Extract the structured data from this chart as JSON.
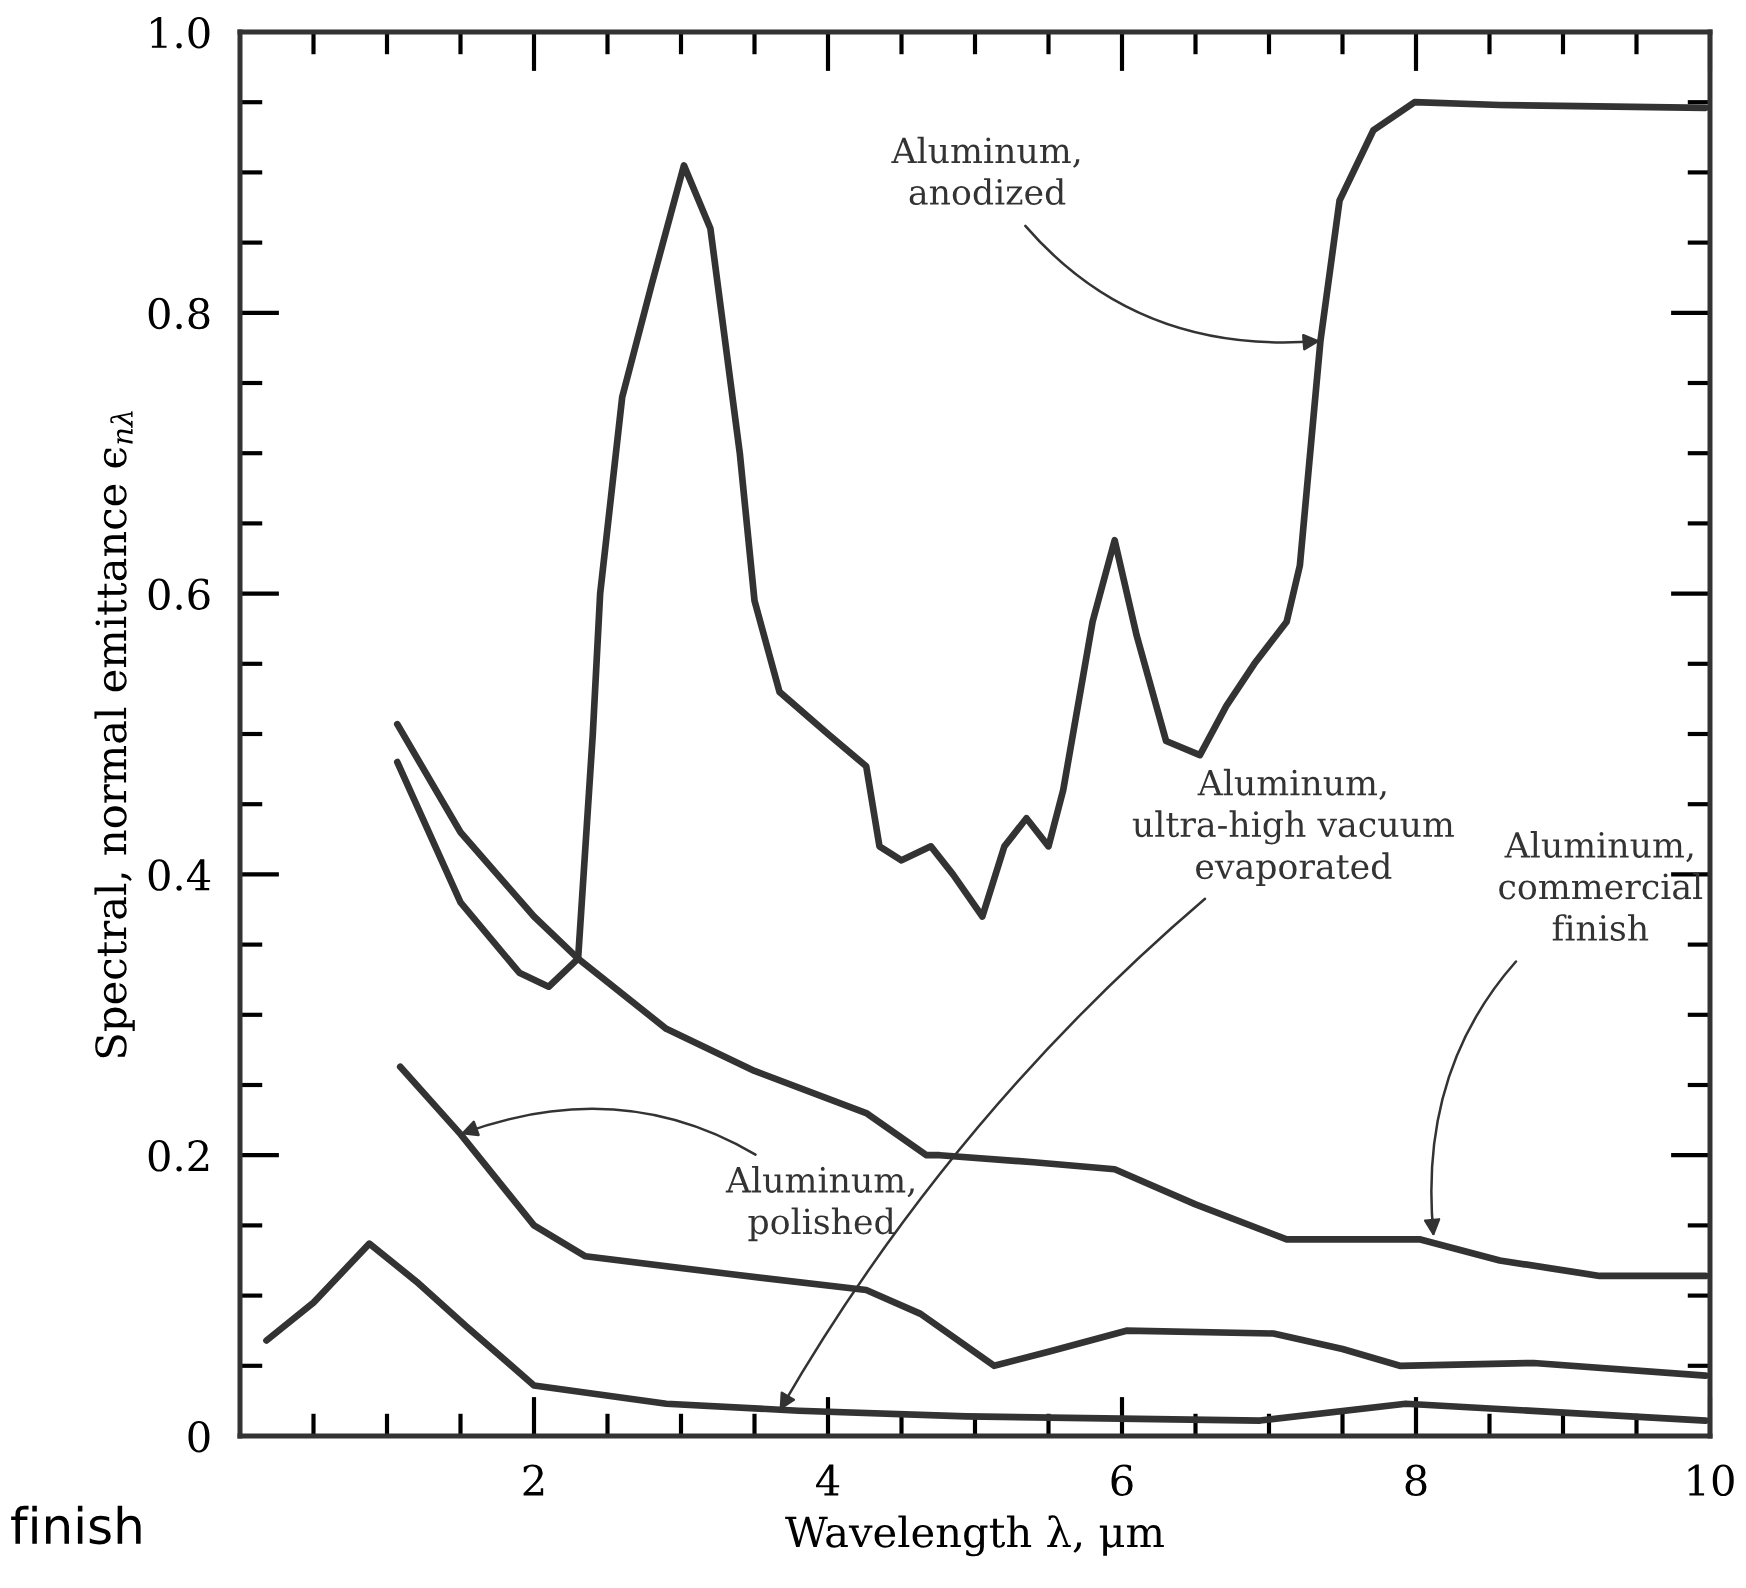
{
  "chart_data": {
    "type": "line",
    "xlabel": "Wavelength λ, μm",
    "ylabel": "Spectral, normal emittance ϵ$_{nλ}$",
    "xlim": [
      0,
      10
    ],
    "ylim": [
      0,
      1
    ],
    "xticks": [
      {
        "value": 0.5,
        "label": null
      },
      {
        "value": 1,
        "label": null
      },
      {
        "value": 1.5,
        "label": null
      },
      2,
      {
        "value": 2.5,
        "label": null
      },
      {
        "value": 3,
        "label": null
      },
      {
        "value": 3.5,
        "label": null
      },
      4,
      {
        "value": 4.5,
        "label": null
      },
      {
        "value": 5,
        "label": null
      },
      {
        "value": 5.5,
        "label": null
      },
      6,
      {
        "value": 6.5,
        "label": null
      },
      {
        "value": 7,
        "label": null
      },
      {
        "value": 7.5,
        "label": null
      },
      8,
      {
        "value": 8.5,
        "label": null
      },
      {
        "value": 9,
        "label": null
      },
      {
        "value": 9.5,
        "label": null
      },
      10
    ],
    "yticks": [
      0,
      {
        "value": 0.05,
        "label": null
      },
      {
        "value": 0.1,
        "label": null
      },
      {
        "value": 0.15,
        "label": null
      },
      0.2,
      {
        "value": 0.25,
        "label": null
      },
      {
        "value": 0.3,
        "label": null
      },
      {
        "value": 0.35,
        "label": null
      },
      0.4,
      {
        "value": 0.45,
        "label": null
      },
      {
        "value": 0.5,
        "label": null
      },
      {
        "value": 0.55,
        "label": null
      },
      0.6,
      {
        "value": 0.65,
        "label": null
      },
      {
        "value": 0.7,
        "label": null
      },
      {
        "value": 0.75,
        "label": null
      },
      0.8,
      {
        "value": 0.85,
        "label": null
      },
      {
        "value": 0.9,
        "label": null
      },
      {
        "value": 0.95,
        "label": null
      },
      {
        "value": 1,
        "label": "1.0"
      }
    ],
    "grid": false,
    "legend": false,
    "marker": "none",
    "line_style": "solid",
    "series": [
      {
        "color": "#333333",
        "x": [
          1.07,
          1.5,
          1.9,
          2.1,
          2.3,
          2.4,
          2.45,
          2.6,
          2.8,
          3.02,
          3.2,
          3.4,
          3.5,
          3.67,
          4.0,
          4.26,
          4.35,
          4.5,
          4.7,
          4.85,
          5.05,
          5.2,
          5.35,
          5.5,
          5.6,
          5.8,
          5.95,
          6.1,
          6.3,
          6.53,
          6.71,
          6.9,
          7.12,
          7.21,
          7.35,
          7.48,
          7.71,
          7.99,
          8.57,
          9.97
        ],
        "values": [
          0.48,
          0.38,
          0.33,
          0.32,
          0.34,
          0.5,
          0.6,
          0.74,
          0.82,
          0.905,
          0.86,
          0.7,
          0.595,
          0.53,
          0.5,
          0.477,
          0.42,
          0.41,
          0.42,
          0.4,
          0.37,
          0.42,
          0.44,
          0.42,
          0.46,
          0.58,
          0.638,
          0.57,
          0.495,
          0.485,
          0.52,
          0.55,
          0.58,
          0.62,
          0.78,
          0.88,
          0.93,
          0.95,
          0.948,
          0.946
        ]
      },
      {
        "color": "#333333",
        "x": [
          1.07,
          1.5,
          2.0,
          2.3,
          2.9,
          3.5,
          4.26,
          4.67,
          4.76,
          5.4,
          5.95,
          6.5,
          7.12,
          8.03,
          8.57,
          9.25,
          9.97
        ],
        "values": [
          0.507,
          0.43,
          0.37,
          0.34,
          0.29,
          0.26,
          0.23,
          0.2,
          0.2,
          0.195,
          0.19,
          0.165,
          0.14,
          0.14,
          0.125,
          0.114,
          0.114
        ]
      },
      {
        "color": "#333333",
        "x": [
          1.09,
          1.5,
          2.0,
          2.35,
          3.36,
          4.26,
          4.63,
          5.13,
          5.5,
          6.03,
          7.03,
          7.5,
          7.89,
          8.8,
          9.97
        ],
        "values": [
          0.263,
          0.215,
          0.15,
          0.128,
          0.115,
          0.104,
          0.087,
          0.05,
          0.06,
          0.075,
          0.073,
          0.062,
          0.05,
          0.052,
          0.043
        ]
      },
      {
        "color": "#333333",
        "x": [
          0.18,
          0.5,
          0.88,
          1.2,
          1.54,
          2.0,
          2.9,
          3.8,
          4.94,
          6.94,
          7.93,
          9.97
        ],
        "values": [
          0.068,
          0.095,
          0.137,
          0.11,
          0.078,
          0.036,
          0.023,
          0.018,
          0.014,
          0.011,
          0.023,
          0.011
        ]
      }
    ],
    "annotations": [
      {
        "text": "Aluminum,\nanodized",
        "x": 7.35,
        "y": 0.78
      },
      {
        "text": "Aluminum,\npolished",
        "x": 1.5,
        "y": 0.215
      },
      {
        "text": "Aluminum,\nultra-high vacuum\nevaporated",
        "x": 3.67,
        "y": 0.018
      },
      {
        "text": "Aluminum,\ncommercial\nfinish",
        "x": 8.12,
        "y": 0.142
      },
      "finish"
    ]
  }
}
